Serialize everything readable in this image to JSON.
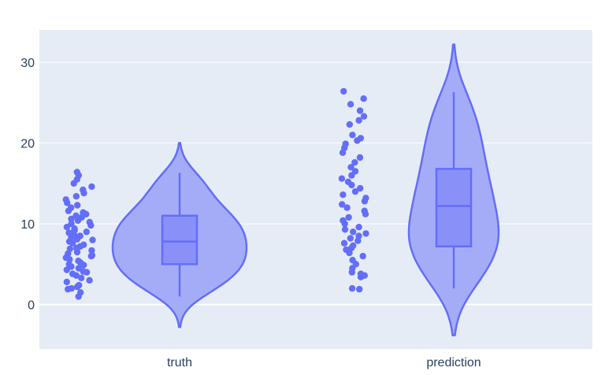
{
  "chart_data": {
    "type": "violin",
    "categories": [
      "truth",
      "prediction"
    ],
    "ylim": [
      -5.5,
      34
    ],
    "y_ticks": [
      0,
      10,
      20,
      30
    ],
    "grid": true,
    "colors": {
      "background": "#E5ECF6",
      "grid": "#ffffff",
      "marker": "#636EFA",
      "violin_fill": "#A1A9F7",
      "box_fill": "#8991F8",
      "line": "#636EFA"
    },
    "series": [
      {
        "category": "truth",
        "box": {
          "q1": 5.0,
          "median": 7.8,
          "q3": 11.0,
          "whisker_low": 1.0,
          "whisker_high": 16.3
        },
        "violin": {
          "min": -2.8,
          "max": 20.0
        },
        "points": [
          1.0,
          1.5,
          1.9,
          2.0,
          2.2,
          2.4,
          2.8,
          3.0,
          3.3,
          3.6,
          3.8,
          4.0,
          4.1,
          4.3,
          4.5,
          4.7,
          4.9,
          5.0,
          5.2,
          5.4,
          5.6,
          5.8,
          6.0,
          6.1,
          6.3,
          6.5,
          6.7,
          6.9,
          7.0,
          7.2,
          7.4,
          7.6,
          7.8,
          8.0,
          8.1,
          8.3,
          8.5,
          8.7,
          8.9,
          9.0,
          9.2,
          9.4,
          9.6,
          9.8,
          10.0,
          10.2,
          10.4,
          10.6,
          10.8,
          11.0,
          11.2,
          11.4,
          11.6,
          12.0,
          12.3,
          12.6,
          13.0,
          13.4,
          13.8,
          14.2,
          14.6,
          15.0,
          15.5,
          16.0,
          16.4
        ]
      },
      {
        "category": "prediction",
        "box": {
          "q1": 7.2,
          "median": 12.2,
          "q3": 16.8,
          "whisker_low": 2.0,
          "whisker_high": 26.3
        },
        "violin": {
          "min": -3.8,
          "max": 32.2
        },
        "points": [
          1.9,
          2.0,
          3.4,
          3.6,
          3.8,
          4.0,
          4.5,
          5.0,
          5.5,
          6.0,
          6.4,
          6.8,
          7.0,
          7.3,
          7.6,
          7.9,
          8.2,
          8.5,
          8.8,
          9.0,
          9.3,
          9.6,
          10.0,
          10.4,
          10.8,
          11.2,
          11.6,
          12.0,
          12.4,
          12.8,
          13.2,
          13.6,
          14.0,
          14.4,
          14.8,
          15.2,
          15.6,
          16.0,
          16.5,
          17.0,
          17.6,
          18.2,
          18.8,
          19.4,
          19.9,
          20.3,
          20.6,
          21.0,
          22.3,
          22.8,
          23.3,
          24.0,
          24.8,
          25.5,
          26.4
        ]
      }
    ]
  }
}
